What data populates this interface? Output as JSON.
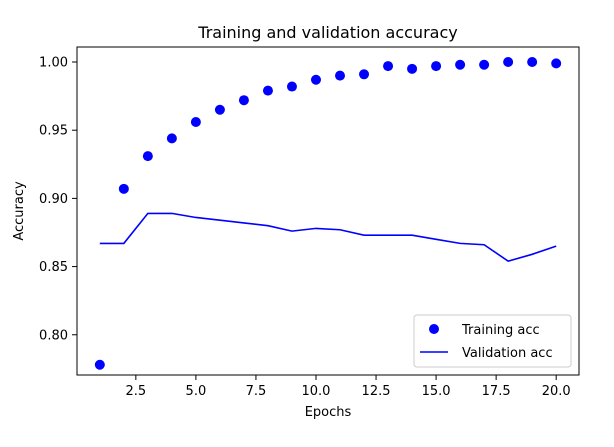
{
  "chart_data": {
    "type": "scatter",
    "title": "Training and validation accuracy",
    "xlabel": "Epochs",
    "ylabel": "Accuracy",
    "xlim": [
      0.05,
      20.95
    ],
    "ylim": [
      0.7705,
      1.011
    ],
    "xticks": [
      2.5,
      5.0,
      7.5,
      10.0,
      12.5,
      15.0,
      17.5,
      20.0
    ],
    "xtick_labels": [
      "2.5",
      "5.0",
      "7.5",
      "10.0",
      "12.5",
      "15.0",
      "17.5",
      "20.0"
    ],
    "yticks": [
      0.8,
      0.85,
      0.9,
      0.95,
      1.0
    ],
    "ytick_labels": [
      "0.80",
      "0.85",
      "0.90",
      "0.95",
      "1.00"
    ],
    "grid": false,
    "legend_position": "lower-right",
    "x": [
      1,
      2,
      3,
      4,
      5,
      6,
      7,
      8,
      9,
      10,
      11,
      12,
      13,
      14,
      15,
      16,
      17,
      18,
      19,
      20
    ],
    "series": [
      {
        "name": "Training acc",
        "style": "markers",
        "color": "#0000ff",
        "values": [
          0.778,
          0.907,
          0.931,
          0.944,
          0.956,
          0.965,
          0.972,
          0.979,
          0.982,
          0.987,
          0.99,
          0.991,
          0.997,
          0.995,
          0.997,
          0.998,
          0.998,
          1.0,
          1.0,
          0.999
        ]
      },
      {
        "name": "Validation acc",
        "style": "line",
        "color": "#0000ff",
        "values": [
          0.867,
          0.867,
          0.889,
          0.889,
          0.886,
          0.884,
          0.882,
          0.88,
          0.876,
          0.878,
          0.877,
          0.873,
          0.873,
          0.873,
          0.87,
          0.867,
          0.866,
          0.854,
          0.859,
          0.865
        ]
      }
    ]
  }
}
